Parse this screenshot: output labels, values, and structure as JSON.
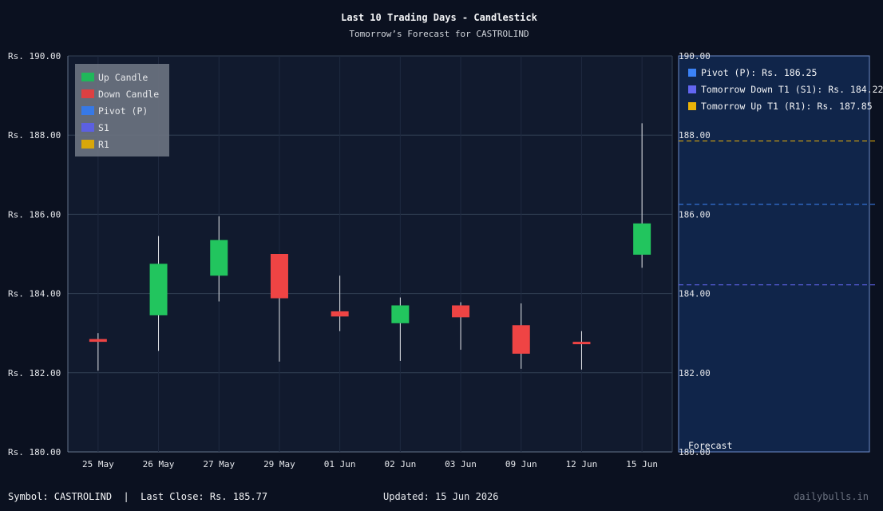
{
  "title": "Last 10 Trading Days - Candlestick",
  "subtitle": "Tomorrow’s Forecast for CASTROLIND",
  "legend": {
    "items": [
      {
        "label": "Up Candle",
        "color": "#22c55e"
      },
      {
        "label": "Down Candle",
        "color": "#ef4444"
      },
      {
        "label": "Pivot (P)",
        "color": "#3b82f6"
      },
      {
        "label": "S1",
        "color": "#6366f1"
      },
      {
        "label": "R1",
        "color": "#eab308"
      }
    ]
  },
  "forecast_panel": {
    "label": "Forecast",
    "items": [
      {
        "label": "Pivot (P): Rs. 186.25",
        "color": "#3b82f6"
      },
      {
        "label": "Tomorrow Down T1 (S1): Rs. 184.22",
        "color": "#6366f1"
      },
      {
        "label": "Tomorrow Up T1 (R1): Rs. 187.85",
        "color": "#eab308"
      }
    ]
  },
  "footer": {
    "symbol": "Symbol: CASTROLIND  |  Last Close: Rs. 185.77",
    "updated": "Updated: 15 Jun 2026",
    "site": "dailybulls.in"
  },
  "chart_data": {
    "type": "candlestick",
    "title": "Last 10 Trading Days - Candlestick",
    "subtitle": "Tomorrow’s Forecast for CASTROLIND",
    "ylim": [
      180,
      190
    ],
    "yticks": [
      180,
      182,
      184,
      186,
      188,
      190
    ],
    "ytick_labels": [
      "Rs. 180.00",
      "Rs. 182.00",
      "Rs. 184.00",
      "Rs. 186.00",
      "Rs. 188.00",
      "Rs. 190.00"
    ],
    "forecast_ytick_labels": [
      "180.00",
      "182.00",
      "184.00",
      "186.00",
      "188.00",
      "190.00"
    ],
    "categories": [
      "25 May",
      "26 May",
      "27 May",
      "29 May",
      "01 Jun",
      "02 Jun",
      "03 Jun",
      "09 Jun",
      "12 Jun",
      "15 Jun"
    ],
    "candles": [
      {
        "open": 182.85,
        "close": 182.78,
        "high": 183.0,
        "low": 182.05
      },
      {
        "open": 183.45,
        "close": 184.75,
        "high": 185.45,
        "low": 182.55
      },
      {
        "open": 184.45,
        "close": 185.35,
        "high": 185.95,
        "low": 183.8
      },
      {
        "open": 185.0,
        "close": 183.88,
        "high": 185.0,
        "low": 182.28
      },
      {
        "open": 183.55,
        "close": 183.42,
        "high": 184.45,
        "low": 183.05
      },
      {
        "open": 183.25,
        "close": 183.7,
        "high": 183.9,
        "low": 182.3
      },
      {
        "open": 183.7,
        "close": 183.4,
        "high": 183.78,
        "low": 182.58
      },
      {
        "open": 183.2,
        "close": 182.48,
        "high": 183.75,
        "low": 182.1
      },
      {
        "open": 182.78,
        "close": 182.72,
        "high": 183.05,
        "low": 182.08
      },
      {
        "open": 184.98,
        "close": 185.77,
        "high": 188.3,
        "low": 184.65
      }
    ],
    "forecast": {
      "pivot": 186.25,
      "s1": 184.22,
      "r1": 187.85
    },
    "colors": {
      "up": "#22c55e",
      "down": "#ef4444",
      "pivot": "#3b82f6",
      "s1": "#6366f1",
      "r1": "#eab308",
      "grid": "#334155",
      "axis_text": "#e5e7eb",
      "forecast_bg": "#10254a",
      "forecast_border": "#6b8ac9"
    }
  }
}
